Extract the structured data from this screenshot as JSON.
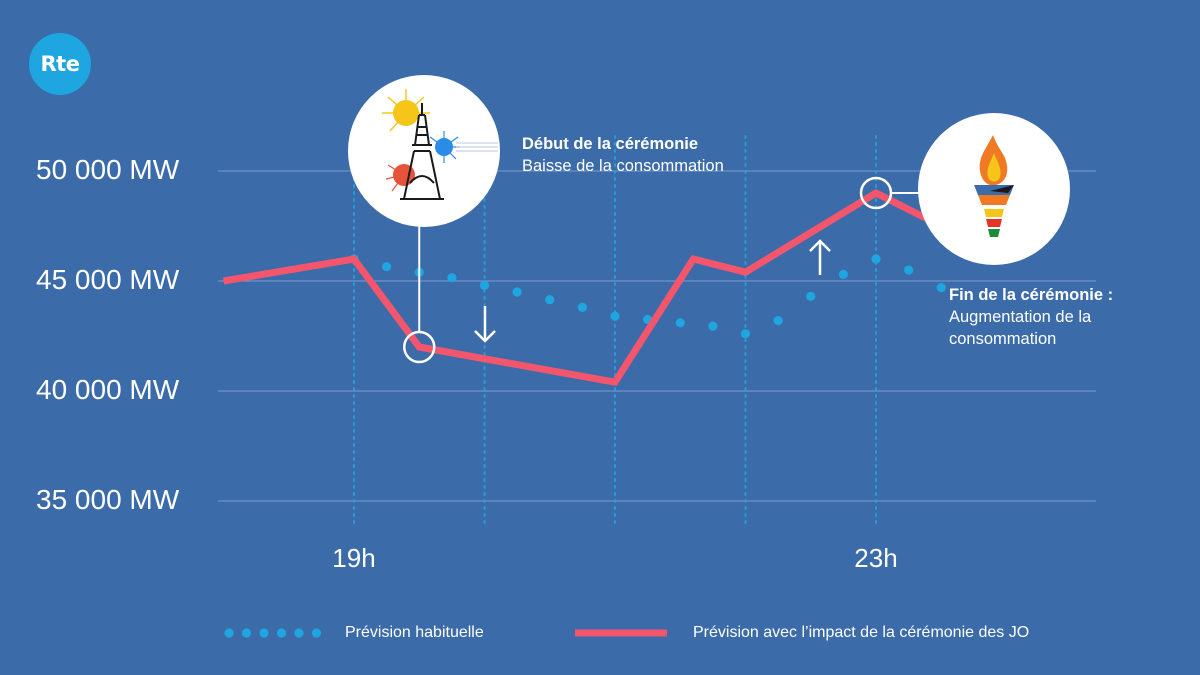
{
  "logo": {
    "text": "Rte"
  },
  "colors": {
    "background": "#3b6ba9",
    "forecast_usual": "#1fa6e0",
    "forecast_ceremony": "#f2566d",
    "gridline": "#8fb0d9"
  },
  "chart_data": {
    "type": "line",
    "y_ticks": [
      "50 000 MW",
      "45 000 MW",
      "40 000 MW",
      "35 000 MW"
    ],
    "x_ticks": [
      "19h",
      "23h"
    ],
    "ylim": [
      35000,
      50000
    ],
    "grid": true,
    "legend_position": "bottom",
    "series": [
      {
        "name": "Prévision habituelle",
        "style": "dotted",
        "points": [
          [
            19.0,
            46000
          ],
          [
            19.25,
            45650
          ],
          [
            19.5,
            45400
          ],
          [
            19.75,
            45150
          ],
          [
            20.0,
            44800
          ],
          [
            20.25,
            44500
          ],
          [
            20.5,
            44150
          ],
          [
            20.75,
            43800
          ],
          [
            21.0,
            43400
          ],
          [
            21.25,
            43250
          ],
          [
            21.5,
            43100
          ],
          [
            21.75,
            42950
          ],
          [
            22.0,
            42600
          ],
          [
            22.25,
            43200
          ],
          [
            22.5,
            44300
          ],
          [
            22.75,
            45300
          ],
          [
            23.0,
            46000
          ],
          [
            23.25,
            45500
          ],
          [
            23.5,
            44700
          ]
        ]
      },
      {
        "name": "Prévision avec l’impact de la cérémonie des JO",
        "style": "solid",
        "points": [
          [
            18.0,
            45000
          ],
          [
            19.0,
            46000
          ],
          [
            19.5,
            42000
          ],
          [
            21.0,
            40400
          ],
          [
            21.6,
            46000
          ],
          [
            22.0,
            45400
          ],
          [
            23.0,
            49000
          ],
          [
            23.4,
            47800
          ]
        ]
      }
    ],
    "annotations": [
      {
        "title": "Début de la cérémonie",
        "text": "Baisse de la consommation",
        "x": 19.5,
        "y": 42000,
        "icon": "eiffel-tower-fireworks-icon",
        "arrow": "down"
      },
      {
        "title": "Fin de la cérémonie :",
        "text": [
          "Augmentation de la",
          "consommation"
        ],
        "x": 23.0,
        "y": 49000,
        "icon": "olympic-torch-icon",
        "arrow": "up"
      }
    ]
  },
  "legend": {
    "usual": "Prévision habituelle",
    "ceremony": "Prévision avec l’impact de la cérémonie des JO"
  }
}
